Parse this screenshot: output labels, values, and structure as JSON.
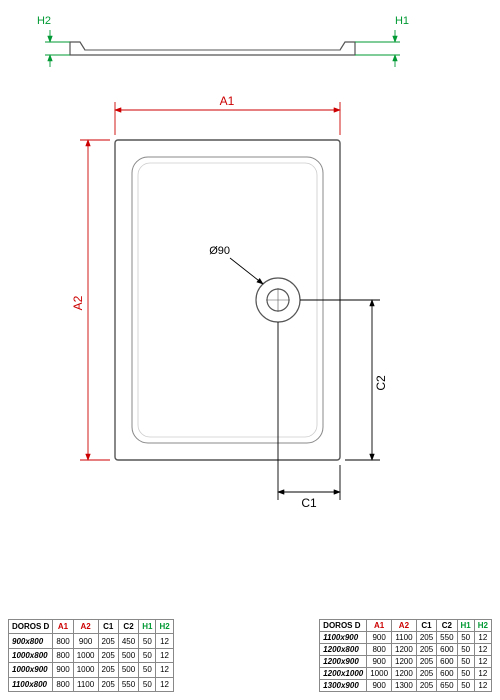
{
  "diagram": {
    "drain_label": "Ø90",
    "labels": {
      "A1": "A1",
      "A2": "A2",
      "C1": "C1",
      "C2": "C2",
      "H1": "H1",
      "H2": "H2"
    },
    "colors": {
      "outline": "#555555",
      "dim_red": "#cc0000",
      "dim_black": "#000000",
      "dim_green": "#009933",
      "fill": "#ffffff",
      "light": "#eeeeee"
    },
    "stroke_width": 1.2,
    "dim_stroke_width": 0.9
  },
  "table_left": {
    "title": "DOROS D",
    "headers": [
      "A1",
      "A2",
      "C1",
      "C2",
      "H1",
      "H2"
    ],
    "header_classes": [
      "dimA",
      "dimA",
      "dimC",
      "dimC",
      "dimH",
      "dimH"
    ],
    "rows": [
      {
        "model": "900x800",
        "v": [
          "800",
          "900",
          "205",
          "450",
          "50",
          "12"
        ]
      },
      {
        "model": "1000x800",
        "v": [
          "800",
          "1000",
          "205",
          "500",
          "50",
          "12"
        ]
      },
      {
        "model": "1000x900",
        "v": [
          "900",
          "1000",
          "205",
          "500",
          "50",
          "12"
        ]
      },
      {
        "model": "1100x800",
        "v": [
          "800",
          "1100",
          "205",
          "550",
          "50",
          "12"
        ]
      }
    ]
  },
  "table_right": {
    "title": "DOROS D",
    "headers": [
      "A1",
      "A2",
      "C1",
      "C2",
      "H1",
      "H2"
    ],
    "header_classes": [
      "dimA",
      "dimA",
      "dimC",
      "dimC",
      "dimH",
      "dimH"
    ],
    "rows": [
      {
        "model": "1100x900",
        "v": [
          "900",
          "1100",
          "205",
          "550",
          "50",
          "12"
        ]
      },
      {
        "model": "1200x800",
        "v": [
          "800",
          "1200",
          "205",
          "600",
          "50",
          "12"
        ]
      },
      {
        "model": "1200x900",
        "v": [
          "900",
          "1200",
          "205",
          "600",
          "50",
          "12"
        ]
      },
      {
        "model": "1200x1000",
        "v": [
          "1000",
          "1200",
          "205",
          "600",
          "50",
          "12"
        ]
      },
      {
        "model": "1300x900",
        "v": [
          "900",
          "1300",
          "205",
          "650",
          "50",
          "12"
        ]
      }
    ]
  }
}
